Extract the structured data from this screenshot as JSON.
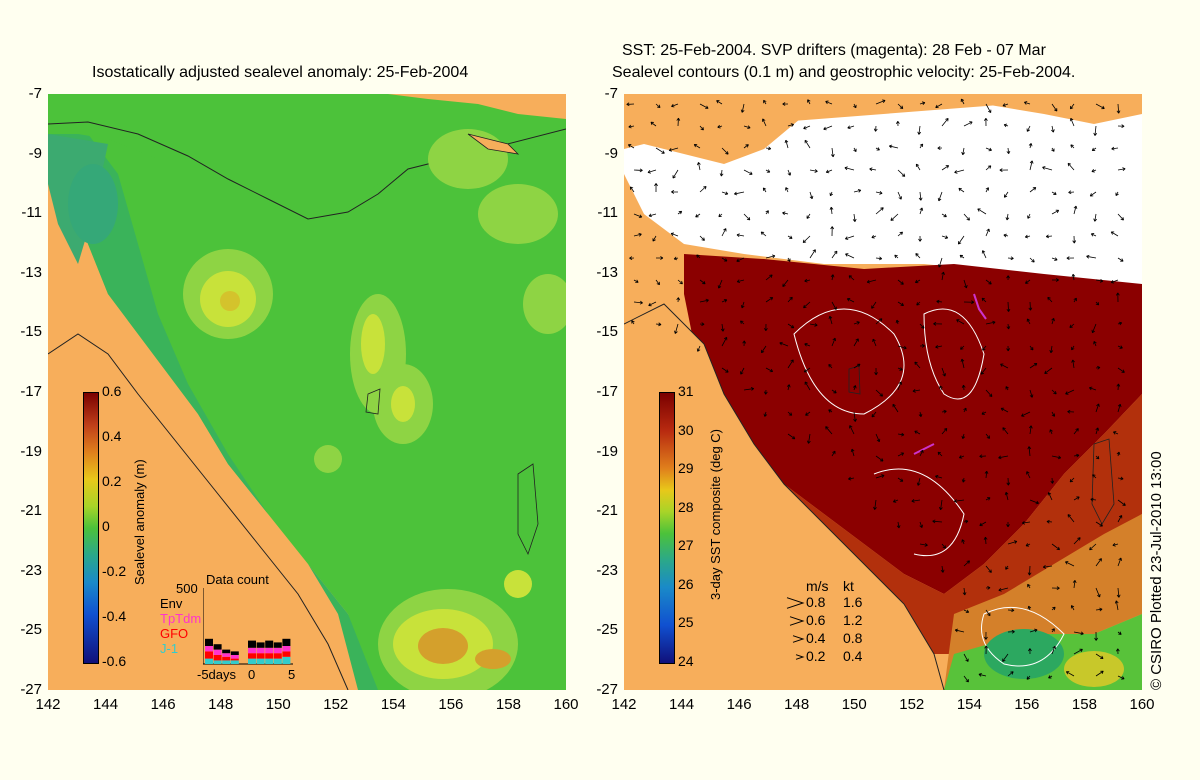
{
  "left_panel": {
    "title": "Isostatically adjusted sealevel anomaly: 25-Feb-2004",
    "colorbar": {
      "label": "Sealevel anomaly (m)",
      "ticks": [
        "0.6",
        "0.4",
        "0.2",
        "0",
        "-0.2",
        "-0.4",
        "-0.6"
      ]
    },
    "data_count": {
      "title": "Data count",
      "scale": "500",
      "sources": [
        {
          "name": "Env",
          "color": "#000000"
        },
        {
          "name": "TpTdm",
          "color": "#ff33cc"
        },
        {
          "name": "GFO",
          "color": "#ff0000"
        },
        {
          "name": "J-1",
          "color": "#33cccc"
        }
      ],
      "xaxis": [
        "-5days",
        "0",
        "5"
      ]
    }
  },
  "right_panel": {
    "title_line1": "SST: 25-Feb-2004. SVP drifters (magenta): 28 Feb - 07 Mar",
    "title_line2": "Sealevel contours (0.1 m) and geostrophic velocity: 25-Feb-2004.",
    "colorbar": {
      "label": "3-day SST composite (deg C)",
      "ticks": [
        "31",
        "30",
        "29",
        "28",
        "27",
        "26",
        "25",
        "24"
      ]
    },
    "velocity_legend": {
      "header_ms": "m/s",
      "header_kt": "kt",
      "rows": [
        {
          "ms": "0.8",
          "kt": "1.6"
        },
        {
          "ms": "0.6",
          "kt": "1.2"
        },
        {
          "ms": "0.4",
          "kt": "0.8"
        },
        {
          "ms": "0.2",
          "kt": "0.4"
        }
      ]
    }
  },
  "axes": {
    "lat_ticks": [
      "-7",
      "-9",
      "-11",
      "-13",
      "-15",
      "-17",
      "-19",
      "-21",
      "-23",
      "-25",
      "-27"
    ],
    "lon_ticks": [
      "142",
      "144",
      "146",
      "148",
      "150",
      "152",
      "154",
      "156",
      "158",
      "160"
    ]
  },
  "credit": "© CSIRO Plotted 23-Jul-2010 13:00",
  "colors": {
    "land": "#f7ae5b",
    "background": "#fffff0",
    "sla_base": "#4cc23a",
    "sst_hot": "#8b0000"
  }
}
